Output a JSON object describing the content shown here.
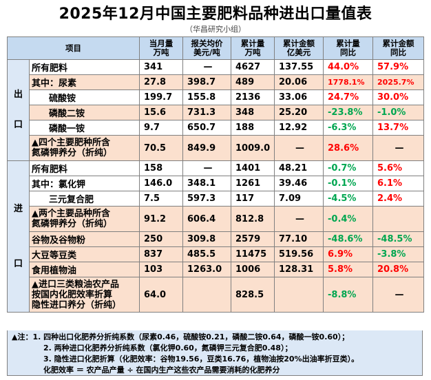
{
  "title": "2025年12月中国主要肥料品种进出口量值表",
  "subtitle": "（华昌研究小组）",
  "headers": {
    "item": "项目",
    "col1": [
      "当月量",
      "万吨"
    ],
    "col2": [
      "报关均价",
      "美元/吨"
    ],
    "col3": [
      "累计量",
      "万吨"
    ],
    "col4": [
      "累计金额",
      "亿美元"
    ],
    "col5": [
      "累计量",
      "同比"
    ],
    "col6": [
      "累计金额",
      "同比"
    ]
  },
  "export_label": "出口",
  "import_label": "进口",
  "export_rows": [
    {
      "name": "所有肥料",
      "v": [
        "341",
        "—",
        "4627",
        "137.55",
        "44.0%",
        "57.9%"
      ]
    },
    {
      "name": "其中：尿素",
      "v": [
        "27.8",
        "398.7",
        "489",
        "20.06",
        "1778.1%",
        "2025.7%"
      ]
    },
    {
      "name": "硫酸铵",
      "v": [
        "199.7",
        "155.8",
        "2136",
        "33.06",
        "24.7%",
        "30.0%"
      ]
    },
    {
      "name": "磷酸二铵",
      "v": [
        "15.6",
        "731.3",
        "348",
        "25.20",
        "-23.8%",
        "-1.0%"
      ]
    },
    {
      "name": "磷酸一铵",
      "v": [
        "9.7",
        "650.7",
        "188",
        "12.92",
        "-6.3%",
        "13.7%"
      ]
    },
    {
      "name": [
        "▲四个主要肥种所含",
        "氮磷钾养分（折纯）"
      ],
      "v": [
        "70.5",
        "849.9",
        "1009.0",
        "—",
        "28.6%",
        "—"
      ]
    }
  ],
  "import_rows": [
    {
      "name": "所有肥料",
      "v": [
        "158",
        "—",
        "1401",
        "48.21",
        "-0.7%",
        "5.6%"
      ]
    },
    {
      "name": "其中：氯化钾",
      "v": [
        "146.0",
        "348.1",
        "1261",
        "39.46",
        "-0.1%",
        "6.1%"
      ]
    },
    {
      "name": "三元复合肥",
      "v": [
        "7.5",
        "597.3",
        "117",
        "7.09",
        "-4.5%",
        "2.4%"
      ]
    },
    {
      "name": [
        "▲两个主要品种所含",
        "氮磷钾养分（折纯）"
      ],
      "v": [
        "91.2",
        "606.4",
        "812.8",
        "—",
        "-0.4%",
        ""
      ]
    },
    {
      "name": "谷物及谷物粉",
      "v": [
        "250",
        "309.8",
        "2579",
        "77.10",
        "-48.6%",
        "-48.5%"
      ]
    },
    {
      "name": "大豆等豆类",
      "v": [
        "837",
        "485.5",
        "11475",
        "519.56",
        "6.9%",
        "-3.8%"
      ]
    },
    {
      "name": "食用植物油",
      "v": [
        "103",
        "1263.0",
        "1006",
        "128.31",
        "5.8%",
        "20.8%"
      ]
    },
    {
      "name": [
        "▲进口三类粮油农产品",
        "按国内化肥效率折算",
        "隐性进口养分（折纯）"
      ],
      "v": [
        "64.0",
        "",
        "828.5",
        "",
        "-8.8%",
        "—"
      ]
    }
  ],
  "notes": [
    "▲注：1. 四种出口化肥养分折纯系数（尿素0.46，硫酸铵0.21，磷酸二铵0.64，磷酸一铵0.60）；",
    "2. 两种进口化肥养分折纯系数（氯化钾0.60，氮磷钾三元复合肥0.48）；",
    "3. 隐性进口化肥折算（化肥效率：谷物19.56，豆类16.76，植物油按20%出油率折豆类）。",
    "化肥效率 ＝ 农产品产量 ÷ 在国内生产这些农产品需要消耗的化肥养分"
  ],
  "colors": {
    "red": "#ff0000",
    "green": "#00a650",
    "peach": "#fbe0ce",
    "header": "#c5daf0",
    "side": "#dce8f6"
  }
}
